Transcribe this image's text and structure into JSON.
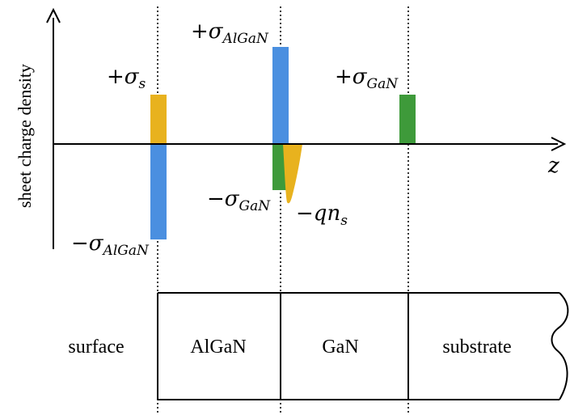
{
  "colors": {
    "surface_charge": "#E8B21E",
    "algan_charge": "#4A8FE0",
    "gan_charge": "#3E9A3A",
    "electron_charge": "#E8B21E",
    "line": "#000000"
  },
  "axes": {
    "y_label": "sheet charge density",
    "x_label": "z"
  },
  "charges": {
    "surface_plus": {
      "sign": "+",
      "sym": "σ",
      "sub": "s"
    },
    "algan_plus": {
      "sign": "+",
      "sym": "σ",
      "sub": "AlGaN"
    },
    "gan_plus": {
      "sign": "+",
      "sym": "σ",
      "sub": "GaN"
    },
    "algan_minus": {
      "sign": "−",
      "sym": "σ",
      "sub": "AlGaN"
    },
    "gan_minus": {
      "sign": "−",
      "sym": "σ",
      "sub": "GaN"
    },
    "electron_minus": {
      "sign": "−",
      "sym": "qn",
      "sub": "s"
    }
  },
  "layers": [
    {
      "label": "surface"
    },
    {
      "label": "AlGaN"
    },
    {
      "label": "GaN"
    },
    {
      "label": "substrate"
    }
  ]
}
